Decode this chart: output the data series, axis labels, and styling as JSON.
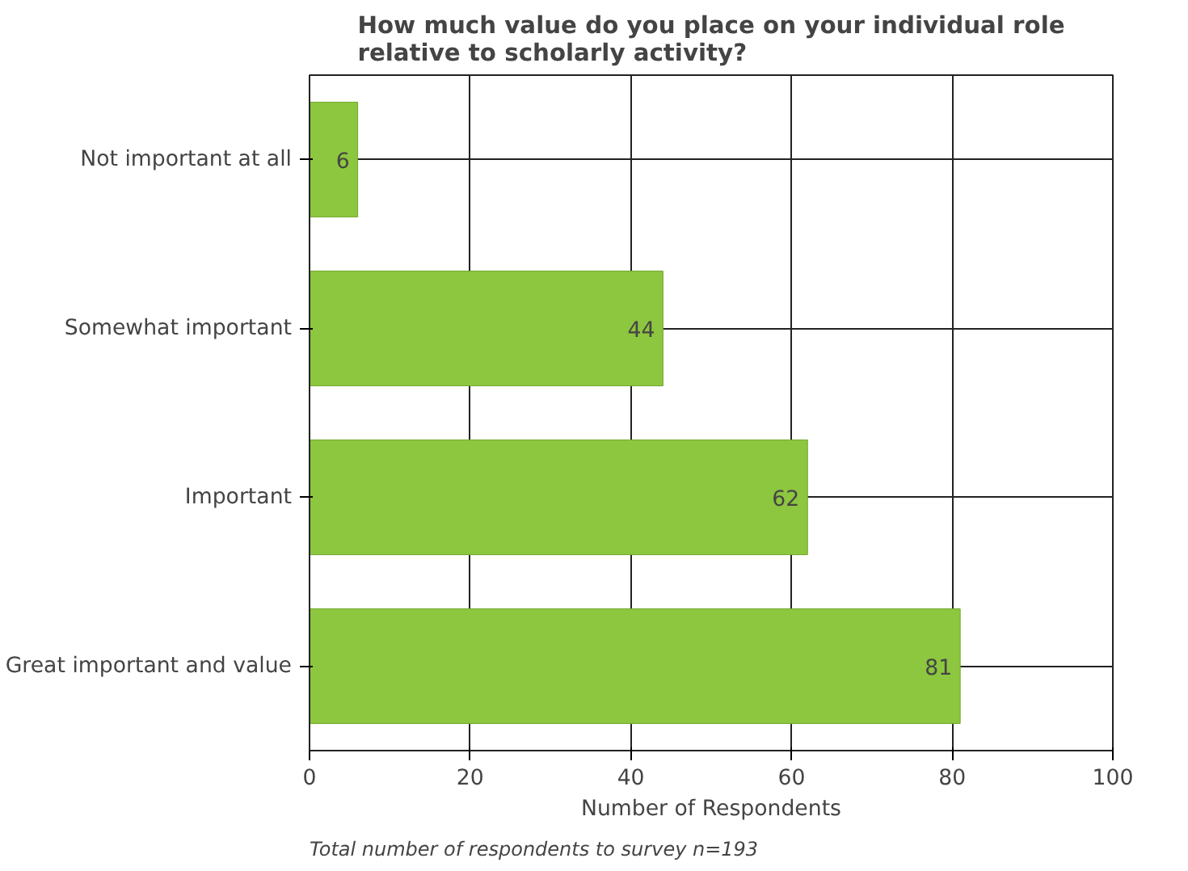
{
  "chart_data": {
    "type": "bar",
    "orientation": "horizontal",
    "title": "How much value do you place on your individual role relative to scholarly activity?",
    "categories": [
      "Not important at all",
      "Somewhat important",
      "Important",
      "Great important and value"
    ],
    "values": [
      6,
      44,
      62,
      81
    ],
    "color": "#8dc63f",
    "xlim": [
      0,
      100
    ],
    "xticks": [
      0,
      20,
      40,
      60,
      80,
      100
    ],
    "grid": true,
    "data_labels": true,
    "xlabel": "Number of Respondents",
    "annotations": [
      "Total number of respondents to survey n=193"
    ]
  }
}
